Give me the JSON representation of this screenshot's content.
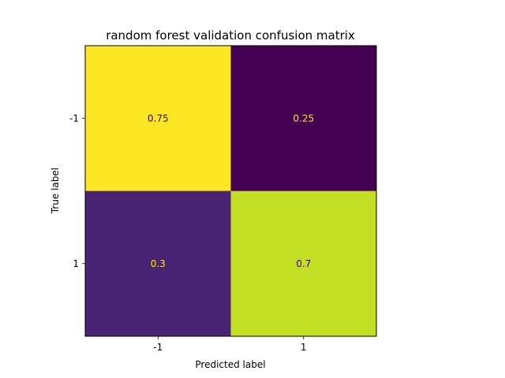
{
  "chart_data": {
    "type": "heatmap",
    "title": "random forest validation confusion matrix",
    "xlabel": "Predicted label",
    "ylabel": "True label",
    "x_categories": [
      "-1",
      "1"
    ],
    "y_categories": [
      "-1",
      "1"
    ],
    "values": [
      [
        0.75,
        0.25
      ],
      [
        0.3,
        0.7
      ]
    ],
    "value_labels": [
      [
        "0.75",
        "0.25"
      ],
      [
        "0.3",
        "0.7"
      ]
    ],
    "colormap": "viridis",
    "cell_colors": [
      [
        "#fde725",
        "#440154"
      ],
      [
        "#482374",
        "#c2df23"
      ]
    ],
    "label_colors": [
      [
        "#440154",
        "#fde725"
      ],
      [
        "#fde725",
        "#440154"
      ]
    ],
    "grid": false,
    "colorbar": false
  }
}
